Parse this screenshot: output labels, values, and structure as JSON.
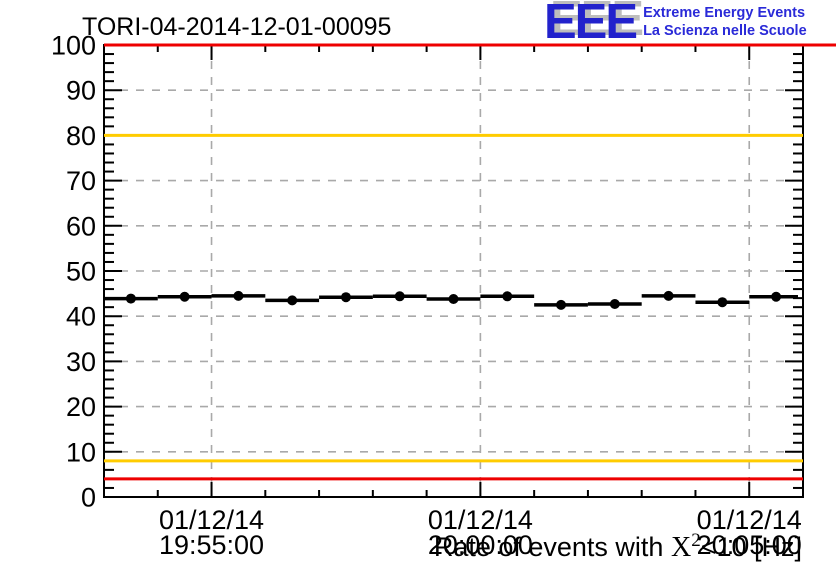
{
  "header": {
    "plot_title": "TORI-04-2014-12-01-00095",
    "logo": {
      "acronym": "EEE",
      "line1": "Extreme Energy Events",
      "line2": "La Scienza nelle Scuole",
      "text_color": "#2a2ad8",
      "acronym_color": "#2222cc",
      "shadow_color": "#bdbdbd"
    }
  },
  "chart_data": {
    "type": "scatter",
    "title": "",
    "x_axis": {
      "range_start": "19:53:00",
      "range_end": "20:06:00",
      "minor_step_seconds": 60,
      "major_ticks": [
        {
          "date": "01/12/14",
          "time": "19:55:00"
        },
        {
          "date": "01/12/14",
          "time": "20:00:00"
        },
        {
          "date": "01/12/14",
          "time": "20:05:00"
        }
      ]
    },
    "y_axis": {
      "min": 0,
      "max": 100,
      "major_step": 10,
      "minor_step": 2
    },
    "axis_title": {
      "pre": "Rate of events with",
      "symbol": "X",
      "superscript": "2",
      "post": "<10 [Hz]"
    },
    "series": [
      {
        "name": "rate",
        "x_error_seconds": 30,
        "points": [
          {
            "time": "19:53:30",
            "value": 43.9
          },
          {
            "time": "19:54:30",
            "value": 44.3
          },
          {
            "time": "19:55:30",
            "value": 44.5
          },
          {
            "time": "19:56:30",
            "value": 43.5
          },
          {
            "time": "19:57:30",
            "value": 44.2
          },
          {
            "time": "19:58:30",
            "value": 44.4
          },
          {
            "time": "19:59:30",
            "value": 43.8
          },
          {
            "time": "20:00:30",
            "value": 44.4
          },
          {
            "time": "20:01:30",
            "value": 42.5
          },
          {
            "time": "20:02:30",
            "value": 42.7
          },
          {
            "time": "20:03:30",
            "value": 44.5
          },
          {
            "time": "20:04:30",
            "value": 43.1
          },
          {
            "time": "20:05:30",
            "value": 44.3
          }
        ]
      }
    ],
    "reference_lines": [
      {
        "value": 100,
        "color": "#ee0000",
        "extends_past_frame": true
      },
      {
        "value": 80,
        "color": "#ffcc00",
        "extends_past_frame": false
      },
      {
        "value": 8,
        "color": "#ffcc00",
        "extends_past_frame": false
      },
      {
        "value": 4,
        "color": "#ee0000",
        "extends_past_frame": false
      }
    ],
    "grid": {
      "show": true,
      "color": "#a9a9a9",
      "dash": "8,8"
    },
    "colors": {
      "marker": "#000000",
      "frame": "#000000"
    }
  }
}
